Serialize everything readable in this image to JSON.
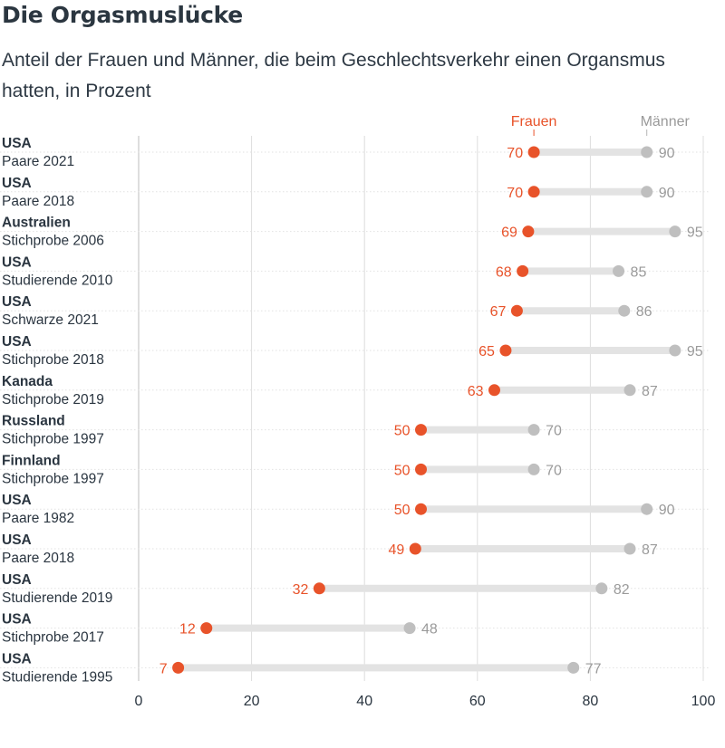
{
  "title": "Die Orgasmuslücke",
  "subtitle": "Anteil der Frauen und Männer, die beim Geschlechtsverkehr einen Organsmus hatten, in Prozent",
  "colors": {
    "women": "#e8532a",
    "men": "#bfbfbf",
    "connector": "#e3e3e3",
    "grid": "#dddddd"
  },
  "chart_data": {
    "type": "dot-range",
    "title": "Die Orgasmuslücke",
    "subtitle": "Anteil der Frauen und Männer, die beim Geschlechtsverkehr einen Organsmus hatten, in Prozent",
    "xlim": [
      0,
      100
    ],
    "xticks": [
      0,
      20,
      40,
      60,
      80,
      100
    ],
    "grid": true,
    "legend_placement": "top-right",
    "series": [
      {
        "name": "Frauen",
        "key": "women"
      },
      {
        "name": "Männer",
        "key": "men"
      }
    ],
    "rows": [
      {
        "group": "USA",
        "sub": "Paare 2021",
        "women": 70,
        "men": 90
      },
      {
        "group": "USA",
        "sub": "Paare 2018",
        "women": 70,
        "men": 90
      },
      {
        "group": "Australien",
        "sub": "Stichprobe 2006",
        "women": 69,
        "men": 95
      },
      {
        "group": "USA",
        "sub": "Studierende 2010",
        "women": 68,
        "men": 85
      },
      {
        "group": "USA",
        "sub": "Schwarze 2021",
        "women": 67,
        "men": 86
      },
      {
        "group": "USA",
        "sub": "Stichprobe 2018",
        "women": 65,
        "men": 95
      },
      {
        "group": "Kanada",
        "sub": "Stichprobe 2019",
        "women": 63,
        "men": 87
      },
      {
        "group": "Russland",
        "sub": "Stichprobe 1997",
        "women": 50,
        "men": 70
      },
      {
        "group": "Finnland",
        "sub": "Stichprobe 1997",
        "women": 50,
        "men": 70
      },
      {
        "group": "USA",
        "sub": "Paare 1982",
        "women": 50,
        "men": 90
      },
      {
        "group": "USA",
        "sub": "Paare 2018",
        "women": 49,
        "men": 87
      },
      {
        "group": "USA",
        "sub": "Studierende 2019",
        "women": 32,
        "men": 82
      },
      {
        "group": "USA",
        "sub": "Stichprobe 2017",
        "women": 12,
        "men": 48
      },
      {
        "group": "USA",
        "sub": "Studierende 1995",
        "women": 7,
        "men": 77
      }
    ]
  }
}
